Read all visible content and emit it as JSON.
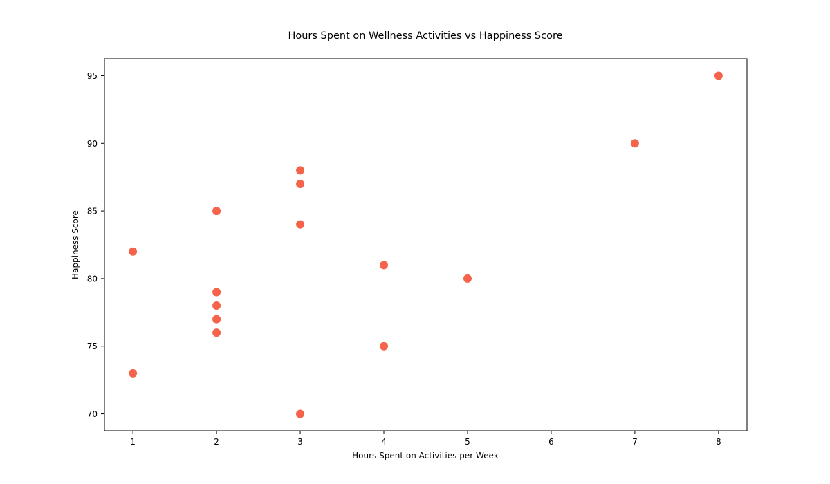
{
  "chart_data": {
    "type": "scatter",
    "title": "Hours Spent on Wellness Activities vs Happiness Score",
    "xlabel": "Hours Spent on Activities per Week",
    "ylabel": "Happiness Score",
    "x_ticks": [
      1,
      2,
      3,
      4,
      5,
      6,
      7,
      8
    ],
    "y_ticks": [
      70,
      75,
      80,
      85,
      90,
      95
    ],
    "xlim": [
      0.66,
      8.34
    ],
    "ylim": [
      68.75,
      96.25
    ],
    "grid": false,
    "legend": "none",
    "series": [
      {
        "color": "#f4634a",
        "points": [
          {
            "x": 1,
            "y": 82
          },
          {
            "x": 1,
            "y": 73
          },
          {
            "x": 2,
            "y": 85
          },
          {
            "x": 2,
            "y": 79
          },
          {
            "x": 2,
            "y": 78
          },
          {
            "x": 2,
            "y": 77
          },
          {
            "x": 2,
            "y": 76
          },
          {
            "x": 3,
            "y": 88
          },
          {
            "x": 3,
            "y": 87
          },
          {
            "x": 3,
            "y": 84
          },
          {
            "x": 3,
            "y": 70
          },
          {
            "x": 4,
            "y": 81
          },
          {
            "x": 4,
            "y": 75
          },
          {
            "x": 5,
            "y": 80
          },
          {
            "x": 7,
            "y": 90
          },
          {
            "x": 8,
            "y": 95
          }
        ]
      }
    ]
  }
}
